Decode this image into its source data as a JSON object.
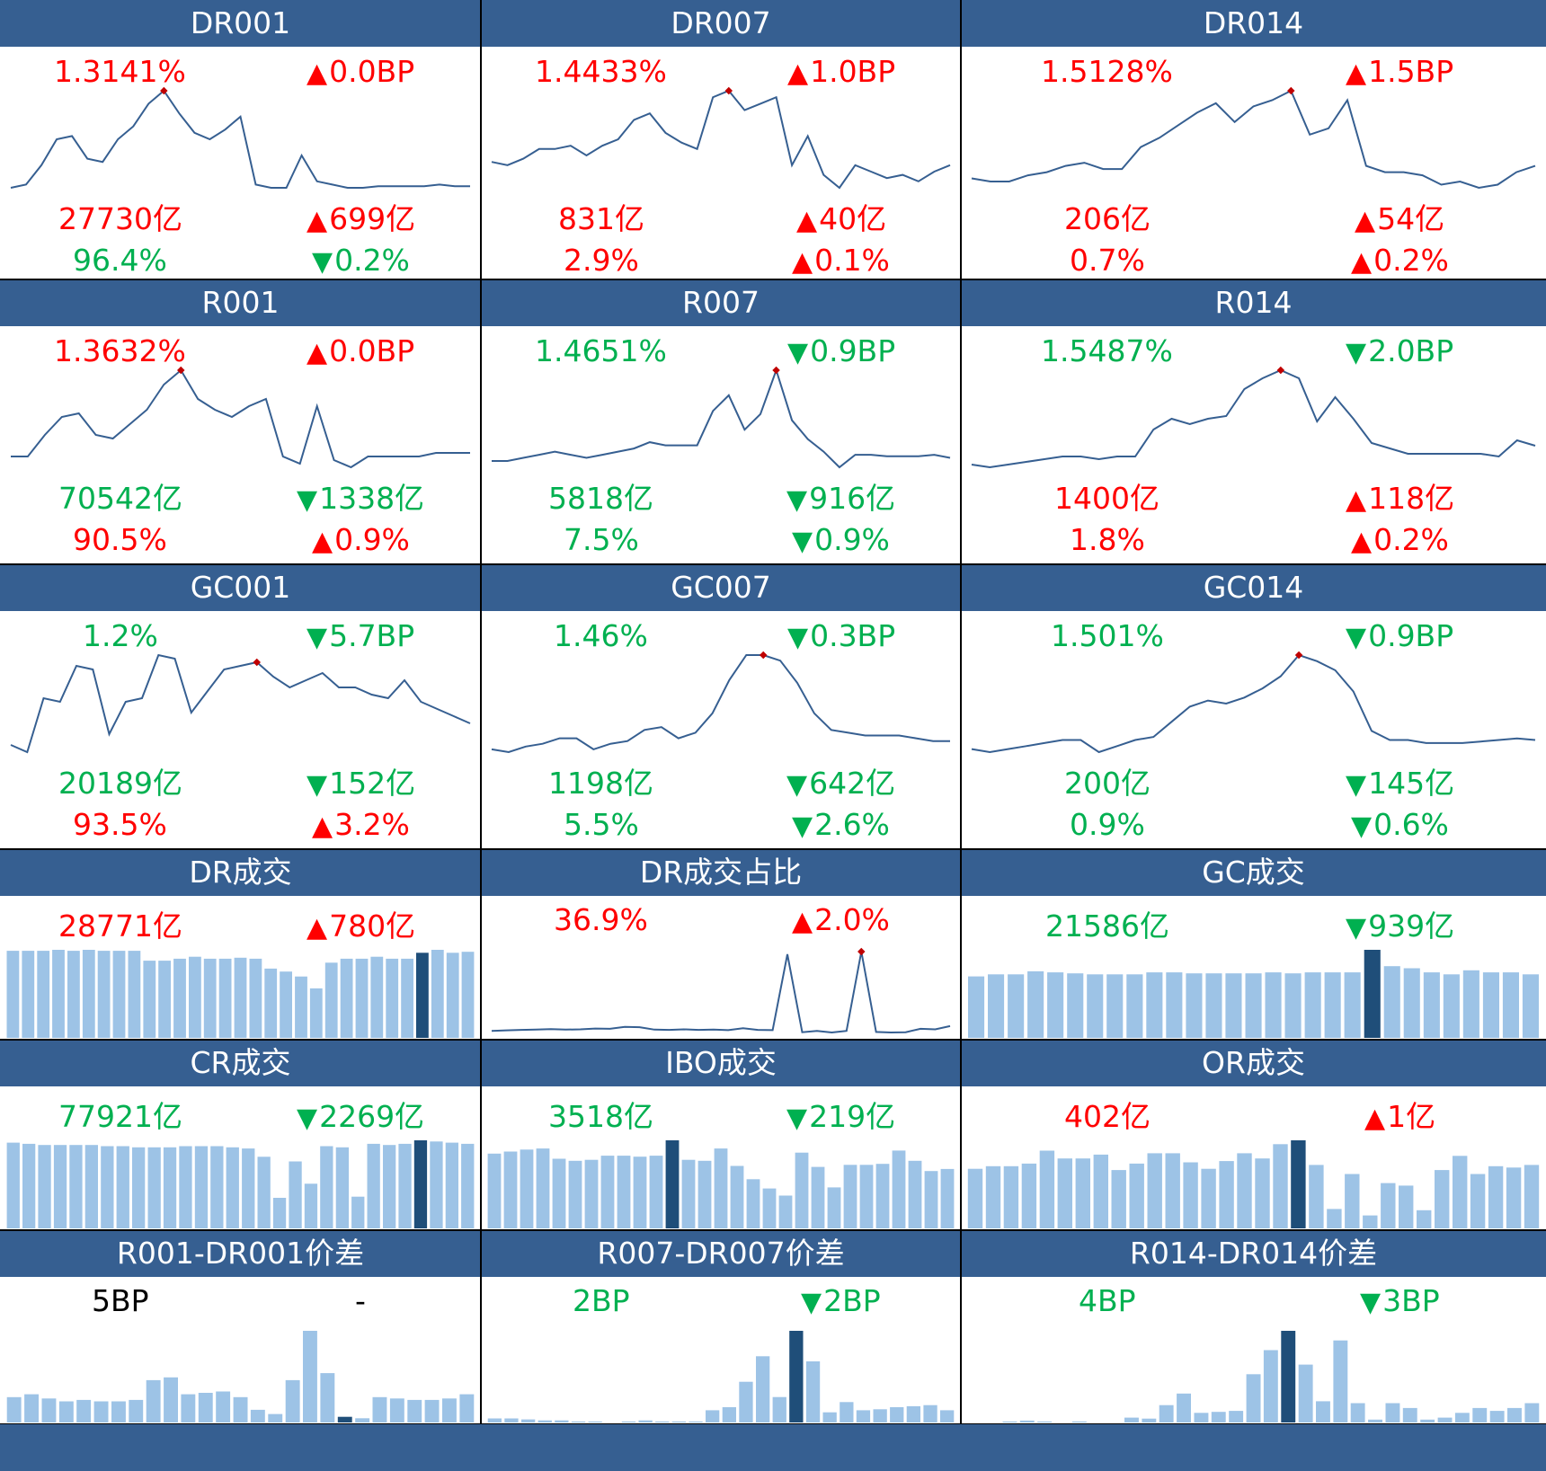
{
  "colors": {
    "header_bg": "#365f91",
    "up": "#ff0000",
    "down": "#00b050",
    "line": "#365f91",
    "bar": "#9dc3e6",
    "bar_highlight": "#1f4e79",
    "peak_marker": "#c00000"
  },
  "panels": [
    {
      "title": "DR001",
      "kind": "line",
      "metrics": [
        {
          "text": "1.3141%",
          "dir": "up"
        },
        {
          "text": "0.0BP",
          "dir": "up",
          "arrow": true
        },
        {
          "text": "27730亿",
          "dir": "up"
        },
        {
          "text": "699亿",
          "dir": "up",
          "arrow": true
        },
        {
          "text": "96.4%",
          "dir": "down"
        },
        {
          "text": "0.2%",
          "dir": "down",
          "arrow": true
        }
      ]
    },
    {
      "title": "DR007",
      "kind": "line",
      "metrics": [
        {
          "text": "1.4433%",
          "dir": "up"
        },
        {
          "text": "1.0BP",
          "dir": "up",
          "arrow": true
        },
        {
          "text": "831亿",
          "dir": "up"
        },
        {
          "text": "40亿",
          "dir": "up",
          "arrow": true
        },
        {
          "text": "2.9%",
          "dir": "up"
        },
        {
          "text": "0.1%",
          "dir": "up",
          "arrow": true
        }
      ]
    },
    {
      "title": "DR014",
      "kind": "line",
      "metrics": [
        {
          "text": "1.5128%",
          "dir": "up"
        },
        {
          "text": "1.5BP",
          "dir": "up",
          "arrow": true
        },
        {
          "text": "206亿",
          "dir": "up"
        },
        {
          "text": "54亿",
          "dir": "up",
          "arrow": true
        },
        {
          "text": "0.7%",
          "dir": "up"
        },
        {
          "text": "0.2%",
          "dir": "up",
          "arrow": true
        }
      ]
    },
    {
      "title": "R001",
      "kind": "line",
      "metrics": [
        {
          "text": "1.3632%",
          "dir": "up"
        },
        {
          "text": "0.0BP",
          "dir": "up",
          "arrow": true
        },
        {
          "text": "70542亿",
          "dir": "down"
        },
        {
          "text": "1338亿",
          "dir": "down",
          "arrow": true
        },
        {
          "text": "90.5%",
          "dir": "up"
        },
        {
          "text": "0.9%",
          "dir": "up",
          "arrow": true
        }
      ]
    },
    {
      "title": "R007",
      "kind": "line",
      "metrics": [
        {
          "text": "1.4651%",
          "dir": "down"
        },
        {
          "text": "0.9BP",
          "dir": "down",
          "arrow": true
        },
        {
          "text": "5818亿",
          "dir": "down"
        },
        {
          "text": "916亿",
          "dir": "down",
          "arrow": true
        },
        {
          "text": "7.5%",
          "dir": "down"
        },
        {
          "text": "0.9%",
          "dir": "down",
          "arrow": true
        }
      ]
    },
    {
      "title": "R014",
      "kind": "line",
      "metrics": [
        {
          "text": "1.5487%",
          "dir": "down"
        },
        {
          "text": "2.0BP",
          "dir": "down",
          "arrow": true
        },
        {
          "text": "1400亿",
          "dir": "up"
        },
        {
          "text": "118亿",
          "dir": "up",
          "arrow": true
        },
        {
          "text": "1.8%",
          "dir": "up"
        },
        {
          "text": "0.2%",
          "dir": "up",
          "arrow": true
        }
      ]
    },
    {
      "title": "GC001",
      "kind": "line",
      "metrics": [
        {
          "text": "1.2%",
          "dir": "down"
        },
        {
          "text": "5.7BP",
          "dir": "down",
          "arrow": true
        },
        {
          "text": "20189亿",
          "dir": "down"
        },
        {
          "text": "152亿",
          "dir": "down",
          "arrow": true
        },
        {
          "text": "93.5%",
          "dir": "up"
        },
        {
          "text": "3.2%",
          "dir": "up",
          "arrow": true
        }
      ]
    },
    {
      "title": "GC007",
      "kind": "line",
      "metrics": [
        {
          "text": "1.46%",
          "dir": "down"
        },
        {
          "text": "0.3BP",
          "dir": "down",
          "arrow": true
        },
        {
          "text": "1198亿",
          "dir": "down"
        },
        {
          "text": "642亿",
          "dir": "down",
          "arrow": true
        },
        {
          "text": "5.5%",
          "dir": "down"
        },
        {
          "text": "2.6%",
          "dir": "down",
          "arrow": true
        }
      ]
    },
    {
      "title": "GC014",
      "kind": "line",
      "metrics": [
        {
          "text": "1.501%",
          "dir": "down"
        },
        {
          "text": "0.9BP",
          "dir": "down",
          "arrow": true
        },
        {
          "text": "200亿",
          "dir": "down"
        },
        {
          "text": "145亿",
          "dir": "down",
          "arrow": true
        },
        {
          "text": "0.9%",
          "dir": "down"
        },
        {
          "text": "0.6%",
          "dir": "down",
          "arrow": true
        }
      ]
    },
    {
      "title": "DR成交",
      "kind": "bar",
      "metrics": [
        {
          "text": "28771亿",
          "dir": "up"
        },
        {
          "text": "780亿",
          "dir": "up",
          "arrow": true
        }
      ]
    },
    {
      "title": "DR成交占比",
      "kind": "line",
      "metrics": [
        {
          "text": "36.9%",
          "dir": "up"
        },
        {
          "text": "2.0%",
          "dir": "up",
          "arrow": true
        }
      ]
    },
    {
      "title": "GC成交",
      "kind": "bar",
      "metrics": [
        {
          "text": "21586亿",
          "dir": "down"
        },
        {
          "text": "939亿",
          "dir": "down",
          "arrow": true
        }
      ]
    },
    {
      "title": "CR成交",
      "kind": "bar",
      "metrics": [
        {
          "text": "77921亿",
          "dir": "down"
        },
        {
          "text": "2269亿",
          "dir": "down",
          "arrow": true
        }
      ]
    },
    {
      "title": "IBO成交",
      "kind": "bar",
      "metrics": [
        {
          "text": "3518亿",
          "dir": "down"
        },
        {
          "text": "219亿",
          "dir": "down",
          "arrow": true
        }
      ]
    },
    {
      "title": "OR成交",
      "kind": "bar",
      "metrics": [
        {
          "text": "402亿",
          "dir": "up"
        },
        {
          "text": "1亿",
          "dir": "up",
          "arrow": true
        }
      ]
    },
    {
      "title": "R001-DR001价差",
      "kind": "bar",
      "metrics": [
        {
          "text": "5BP",
          "dir": "neutral"
        },
        {
          "text": "-",
          "dir": "neutral"
        }
      ]
    },
    {
      "title": "R007-DR007价差",
      "kind": "bar",
      "metrics": [
        {
          "text": "2BP",
          "dir": "down"
        },
        {
          "text": "2BP",
          "dir": "down",
          "arrow": true
        }
      ]
    },
    {
      "title": "R014-DR014价差",
      "kind": "bar",
      "metrics": [
        {
          "text": "4BP",
          "dir": "down"
        },
        {
          "text": "3BP",
          "dir": "down",
          "arrow": true
        }
      ]
    }
  ],
  "chart_data": [
    {
      "type": "line",
      "panel": "DR001",
      "values": [
        1.15,
        1.16,
        1.22,
        1.3,
        1.31,
        1.24,
        1.23,
        1.3,
        1.34,
        1.41,
        1.45,
        1.38,
        1.32,
        1.3,
        1.33,
        1.37,
        1.16,
        1.15,
        1.15,
        1.25,
        1.17,
        1.16,
        1.15,
        1.15,
        1.155,
        1.155,
        1.155,
        1.155,
        1.16,
        1.155,
        1.155
      ],
      "peak_index": 10
    },
    {
      "type": "line",
      "panel": "DR007",
      "values": [
        1.27,
        1.26,
        1.28,
        1.31,
        1.31,
        1.32,
        1.29,
        1.32,
        1.34,
        1.4,
        1.42,
        1.36,
        1.33,
        1.31,
        1.47,
        1.49,
        1.43,
        1.45,
        1.47,
        1.26,
        1.35,
        1.23,
        1.19,
        1.26,
        1.24,
        1.22,
        1.23,
        1.21,
        1.24,
        1.26
      ],
      "peak_index": 15
    },
    {
      "type": "line",
      "panel": "DR014",
      "values": [
        1.21,
        1.2,
        1.2,
        1.22,
        1.23,
        1.25,
        1.26,
        1.24,
        1.24,
        1.31,
        1.34,
        1.38,
        1.42,
        1.45,
        1.39,
        1.44,
        1.46,
        1.49,
        1.35,
        1.37,
        1.46,
        1.25,
        1.23,
        1.23,
        1.22,
        1.19,
        1.2,
        1.18,
        1.19,
        1.23,
        1.25
      ],
      "peak_index": 17
    },
    {
      "type": "line",
      "panel": "R001",
      "values": [
        1.19,
        1.19,
        1.25,
        1.3,
        1.31,
        1.25,
        1.24,
        1.28,
        1.32,
        1.39,
        1.43,
        1.35,
        1.32,
        1.3,
        1.33,
        1.35,
        1.19,
        1.17,
        1.33,
        1.18,
        1.16,
        1.19,
        1.19,
        1.19,
        1.19,
        1.2,
        1.2,
        1.2
      ],
      "peak_index": 10
    },
    {
      "type": "line",
      "panel": "R007",
      "values": [
        1.23,
        1.23,
        1.24,
        1.25,
        1.26,
        1.25,
        1.24,
        1.25,
        1.26,
        1.27,
        1.29,
        1.28,
        1.28,
        1.28,
        1.39,
        1.44,
        1.33,
        1.38,
        1.52,
        1.36,
        1.3,
        1.26,
        1.21,
        1.25,
        1.25,
        1.245,
        1.245,
        1.245,
        1.25,
        1.24
      ],
      "peak_index": 18
    },
    {
      "type": "line",
      "panel": "R014",
      "values": [
        1.2,
        1.19,
        1.2,
        1.21,
        1.22,
        1.23,
        1.23,
        1.22,
        1.23,
        1.23,
        1.33,
        1.37,
        1.35,
        1.37,
        1.38,
        1.48,
        1.52,
        1.55,
        1.52,
        1.36,
        1.45,
        1.37,
        1.28,
        1.26,
        1.24,
        1.24,
        1.24,
        1.24,
        1.24,
        1.23,
        1.29,
        1.27
      ],
      "peak_index": 17
    },
    {
      "type": "line",
      "panel": "GC001",
      "values": [
        0.95,
        0.93,
        1.08,
        1.07,
        1.17,
        1.16,
        0.98,
        1.07,
        1.08,
        1.2,
        1.19,
        1.04,
        1.1,
        1.16,
        1.17,
        1.18,
        1.14,
        1.11,
        1.13,
        1.15,
        1.11,
        1.11,
        1.09,
        1.08,
        1.13,
        1.07,
        1.05,
        1.03,
        1.01
      ],
      "peak_index": 15
    },
    {
      "type": "line",
      "panel": "GC007",
      "values": [
        1.27,
        1.26,
        1.28,
        1.29,
        1.31,
        1.31,
        1.27,
        1.29,
        1.3,
        1.34,
        1.35,
        1.31,
        1.33,
        1.4,
        1.52,
        1.61,
        1.61,
        1.59,
        1.51,
        1.4,
        1.34,
        1.33,
        1.32,
        1.32,
        1.32,
        1.31,
        1.3,
        1.3
      ],
      "peak_index": 16
    },
    {
      "type": "line",
      "panel": "GC014",
      "values": [
        1.21,
        1.2,
        1.21,
        1.22,
        1.23,
        1.24,
        1.24,
        1.2,
        1.22,
        1.24,
        1.25,
        1.3,
        1.35,
        1.37,
        1.36,
        1.38,
        1.41,
        1.45,
        1.52,
        1.5,
        1.47,
        1.4,
        1.27,
        1.24,
        1.24,
        1.23,
        1.23,
        1.23,
        1.235,
        1.24,
        1.245,
        1.24
      ],
      "peak_index": 18
    },
    {
      "type": "bar",
      "panel": "DR成交",
      "values": [
        88,
        88,
        88,
        89,
        88,
        89,
        88,
        88,
        88,
        78,
        78,
        80,
        82,
        80,
        80,
        81,
        80,
        70,
        67,
        62,
        50,
        76,
        80,
        80,
        82,
        80,
        80,
        86,
        89,
        86,
        87
      ],
      "highlight_index": 27
    },
    {
      "type": "line",
      "panel": "DR成交占比",
      "values": [
        1.0,
        1.2,
        1.4,
        1.5,
        1.7,
        1.5,
        1.6,
        1.9,
        1.8,
        2.5,
        2.4,
        1.5,
        1.4,
        1.6,
        1.4,
        1.5,
        1.3,
        2.0,
        1.4,
        1.3,
        30.0,
        0.5,
        1.0,
        0.4,
        1.0,
        31.0,
        0.6,
        0.4,
        0.5,
        1.8,
        1.6,
        2.8
      ],
      "peak_index": 25
    },
    {
      "type": "bar",
      "panel": "GC成交",
      "values": [
        60,
        62,
        62,
        65,
        64,
        63,
        62,
        62,
        62,
        64,
        64,
        63,
        63,
        63,
        63,
        64,
        63,
        64,
        64,
        64,
        86,
        70,
        68,
        64,
        62,
        66,
        64,
        64,
        62
      ],
      "highlight_index": 20
    },
    {
      "type": "bar",
      "panel": "CR成交",
      "values": [
        73,
        72,
        71,
        71,
        71,
        71,
        70,
        70,
        69,
        69,
        69,
        70,
        70,
        70,
        69,
        68,
        61,
        26,
        57,
        38,
        70,
        69,
        27,
        72,
        71,
        72,
        75,
        74,
        73,
        72
      ],
      "highlight_index": 26
    },
    {
      "type": "bar",
      "panel": "IBO成交",
      "values": [
        73,
        75,
        77,
        78,
        68,
        66,
        67,
        71,
        71,
        70,
        71,
        86,
        67,
        66,
        78,
        61,
        48,
        39,
        32,
        74,
        60,
        40,
        62,
        62,
        63,
        76,
        66,
        56,
        58
      ],
      "highlight_index": 11
    },
    {
      "type": "bar",
      "panel": "OR成交",
      "values": [
        46,
        48,
        48,
        50,
        60,
        54,
        54,
        57,
        45,
        50,
        58,
        58,
        51,
        46,
        52,
        58,
        54,
        65,
        68,
        49,
        15,
        42,
        10,
        35,
        33,
        14,
        45,
        56,
        42,
        48,
        47,
        49
      ],
      "highlight_index": 18
    },
    {
      "type": "bar",
      "panel": "R001-DR001价差",
      "values": [
        18,
        20,
        17,
        15,
        16,
        15,
        15,
        16,
        30,
        32,
        20,
        21,
        22,
        18,
        9,
        6,
        30,
        65,
        35,
        4,
        3,
        18,
        17,
        16,
        16,
        17,
        20
      ],
      "highlight_index": 19
    },
    {
      "type": "bar",
      "panel": "R007-DR007价差",
      "values": [
        4,
        4,
        3,
        2,
        2,
        1,
        1,
        0,
        1,
        2,
        1,
        1,
        1,
        12,
        15,
        40,
        65,
        25,
        90,
        60,
        10,
        20,
        12,
        13,
        15,
        16,
        17,
        12
      ],
      "highlight_index": 18
    },
    {
      "type": "bar",
      "panel": "R014-DR014价差",
      "values": [
        0,
        0,
        1,
        2,
        1,
        0,
        1,
        0,
        0,
        5,
        4,
        18,
        30,
        10,
        11,
        12,
        50,
        75,
        95,
        60,
        22,
        85,
        20,
        3,
        20,
        15,
        3,
        5,
        10,
        15,
        12,
        15,
        20
      ],
      "highlight_index": 18
    }
  ]
}
